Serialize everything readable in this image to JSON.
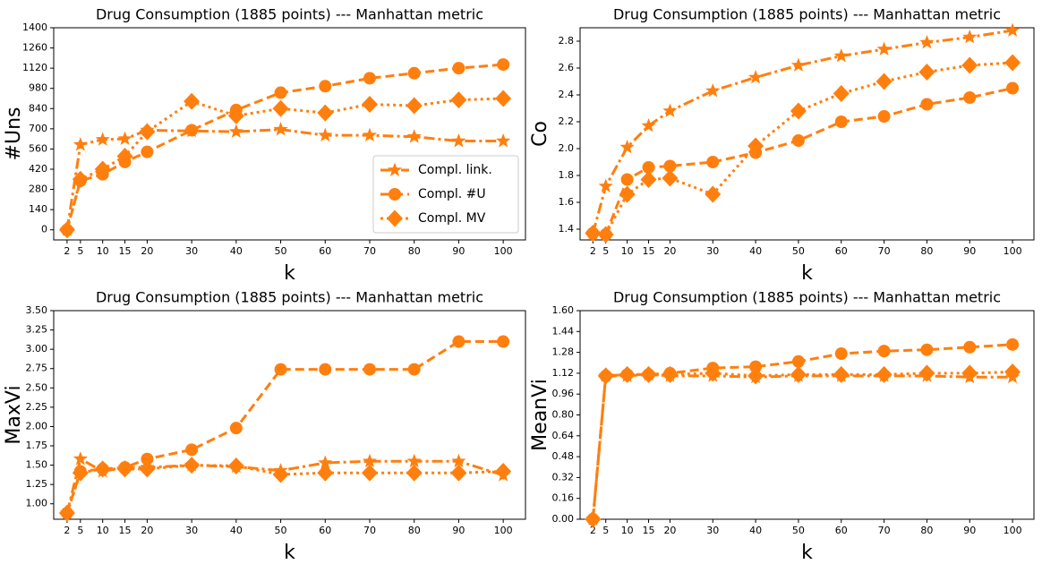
{
  "chart_data": [
    {
      "type": "line",
      "title": "Drug Consumption (1885 points) --- Manhattan metric",
      "xlabel": "k",
      "ylabel": "#Uns",
      "x": [
        2,
        5,
        10,
        15,
        20,
        30,
        40,
        50,
        60,
        70,
        80,
        90,
        100
      ],
      "xlim": [
        -1,
        105
      ],
      "xticks": [
        2,
        5,
        10,
        15,
        20,
        30,
        40,
        50,
        60,
        70,
        80,
        90,
        100
      ],
      "ylim": [
        -70,
        1400
      ],
      "yticks": [
        0,
        140,
        280,
        420,
        560,
        700,
        840,
        980,
        1120,
        1260,
        1400
      ],
      "legend": "lower right",
      "series": [
        {
          "name": "Compl. link.",
          "color": "#ff7f0e",
          "marker": "star",
          "linestyle": "dashdot",
          "values": [
            0,
            590,
            625,
            630,
            690,
            685,
            680,
            695,
            655,
            655,
            645,
            615,
            615
          ]
        },
        {
          "name": "Compl. #U",
          "color": "#ff7f0e",
          "marker": "circle",
          "linestyle": "dashed",
          "values": [
            0,
            340,
            385,
            470,
            540,
            690,
            830,
            950,
            995,
            1050,
            1085,
            1120,
            1145
          ]
        },
        {
          "name": "Compl. MV",
          "color": "#ff7f0e",
          "marker": "diamond",
          "linestyle": "dotted",
          "values": [
            0,
            350,
            420,
            510,
            680,
            890,
            790,
            840,
            810,
            870,
            860,
            900,
            910
          ]
        }
      ]
    },
    {
      "type": "line",
      "title": "Drug Consumption (1885 points) --- Manhattan metric",
      "xlabel": "k",
      "ylabel": "Co",
      "x": [
        2,
        5,
        10,
        15,
        20,
        30,
        40,
        50,
        60,
        70,
        80,
        90,
        100
      ],
      "xlim": [
        -1,
        105
      ],
      "xticks": [
        2,
        5,
        10,
        15,
        20,
        30,
        40,
        50,
        60,
        70,
        80,
        90,
        100
      ],
      "ylim": [
        1.32,
        2.9
      ],
      "yticks": [
        1.4,
        1.6,
        1.8,
        {
          "value": 2,
          "label": "2.0"
        },
        2.2,
        2.4,
        2.6,
        2.8
      ],
      "series": [
        {
          "name": "Compl. link.",
          "color": "#ff7f0e",
          "marker": "star",
          "linestyle": "dashdot",
          "values": [
            1.37,
            1.72,
            2.01,
            2.17,
            2.28,
            2.43,
            2.53,
            2.62,
            2.69,
            2.74,
            2.79,
            2.83,
            2.88
          ]
        },
        {
          "name": "Compl. #U",
          "color": "#ff7f0e",
          "marker": "circle",
          "linestyle": "dashed",
          "values": [
            1.37,
            1.36,
            1.77,
            1.86,
            1.87,
            1.9,
            1.97,
            2.06,
            2.2,
            2.24,
            2.33,
            2.38,
            2.45
          ]
        },
        {
          "name": "Compl. MV",
          "color": "#ff7f0e",
          "marker": "diamond",
          "linestyle": "dotted",
          "values": [
            1.37,
            1.36,
            1.66,
            1.77,
            1.78,
            1.66,
            2.02,
            2.28,
            2.41,
            2.5,
            2.57,
            2.62,
            2.64
          ]
        }
      ]
    },
    {
      "type": "line",
      "title": "Drug Consumption (1885 points) --- Manhattan metric",
      "xlabel": "k",
      "ylabel": "MaxVi",
      "x": [
        2,
        5,
        10,
        15,
        20,
        30,
        40,
        50,
        60,
        70,
        80,
        90,
        100
      ],
      "xlim": [
        -1,
        105
      ],
      "xticks": [
        2,
        5,
        10,
        15,
        20,
        30,
        40,
        50,
        60,
        70,
        80,
        90,
        100
      ],
      "ylim": [
        0.8,
        3.5
      ],
      "yticks": [
        {
          "value": 1,
          "label": "1.00"
        },
        1.25,
        {
          "value": 1.5,
          "label": "1.50"
        },
        1.75,
        {
          "value": 2,
          "label": "2.00"
        },
        2.25,
        {
          "value": 2.5,
          "label": "2.50"
        },
        2.75,
        {
          "value": 3,
          "label": "3.00"
        },
        3.25,
        {
          "value": 3.5,
          "label": "3.50"
        }
      ],
      "series": [
        {
          "name": "Compl. link.",
          "color": "#ff7f0e",
          "marker": "star",
          "linestyle": "dashdot",
          "values": [
            0.88,
            1.58,
            1.42,
            1.47,
            1.47,
            1.5,
            1.48,
            1.43,
            1.53,
            1.55,
            1.55,
            1.55,
            1.37
          ]
        },
        {
          "name": "Compl. #U",
          "color": "#ff7f0e",
          "marker": "circle",
          "linestyle": "dashed",
          "values": [
            0.88,
            1.42,
            1.45,
            1.47,
            1.58,
            1.7,
            1.98,
            2.74,
            2.74,
            2.74,
            2.74,
            3.1,
            3.1
          ]
        },
        {
          "name": "Compl. MV",
          "color": "#ff7f0e",
          "marker": "diamond",
          "linestyle": "dotted",
          "values": [
            0.88,
            1.4,
            1.45,
            1.45,
            1.45,
            1.5,
            1.49,
            1.38,
            1.4,
            1.4,
            1.4,
            1.4,
            1.42
          ]
        }
      ]
    },
    {
      "type": "line",
      "title": "Drug Consumption (1885 points) --- Manhattan metric",
      "xlabel": "k",
      "ylabel": "MeanVi",
      "x": [
        2,
        5,
        10,
        15,
        20,
        30,
        40,
        50,
        60,
        70,
        80,
        90,
        100
      ],
      "xlim": [
        -1,
        105
      ],
      "xticks": [
        2,
        5,
        10,
        15,
        20,
        30,
        40,
        50,
        60,
        70,
        80,
        90,
        100
      ],
      "ylim": [
        0,
        1.6
      ],
      "yticks": [
        {
          "value": 0,
          "label": "0.00"
        },
        0.16,
        0.32,
        0.48,
        0.64,
        {
          "value": 0.8,
          "label": "0.80"
        },
        0.96,
        1.12,
        1.28,
        1.44,
        {
          "value": 1.6,
          "label": "1.60"
        }
      ],
      "series": [
        {
          "name": "Compl. link.",
          "color": "#ff7f0e",
          "marker": "star",
          "linestyle": "dashdot",
          "values": [
            0,
            1.1,
            1.1,
            1.11,
            1.1,
            1.1,
            1.09,
            1.1,
            1.1,
            1.1,
            1.1,
            1.09,
            1.09
          ]
        },
        {
          "name": "Compl. #U",
          "color": "#ff7f0e",
          "marker": "circle",
          "linestyle": "dashed",
          "values": [
            0,
            1.1,
            1.11,
            1.11,
            1.12,
            1.16,
            1.17,
            1.21,
            1.27,
            1.29,
            1.3,
            1.32,
            1.34
          ]
        },
        {
          "name": "Compl. MV",
          "color": "#ff7f0e",
          "marker": "diamond",
          "linestyle": "dotted",
          "values": [
            0,
            1.1,
            1.11,
            1.11,
            1.11,
            1.12,
            1.1,
            1.11,
            1.11,
            1.11,
            1.12,
            1.12,
            1.13
          ]
        }
      ]
    }
  ]
}
